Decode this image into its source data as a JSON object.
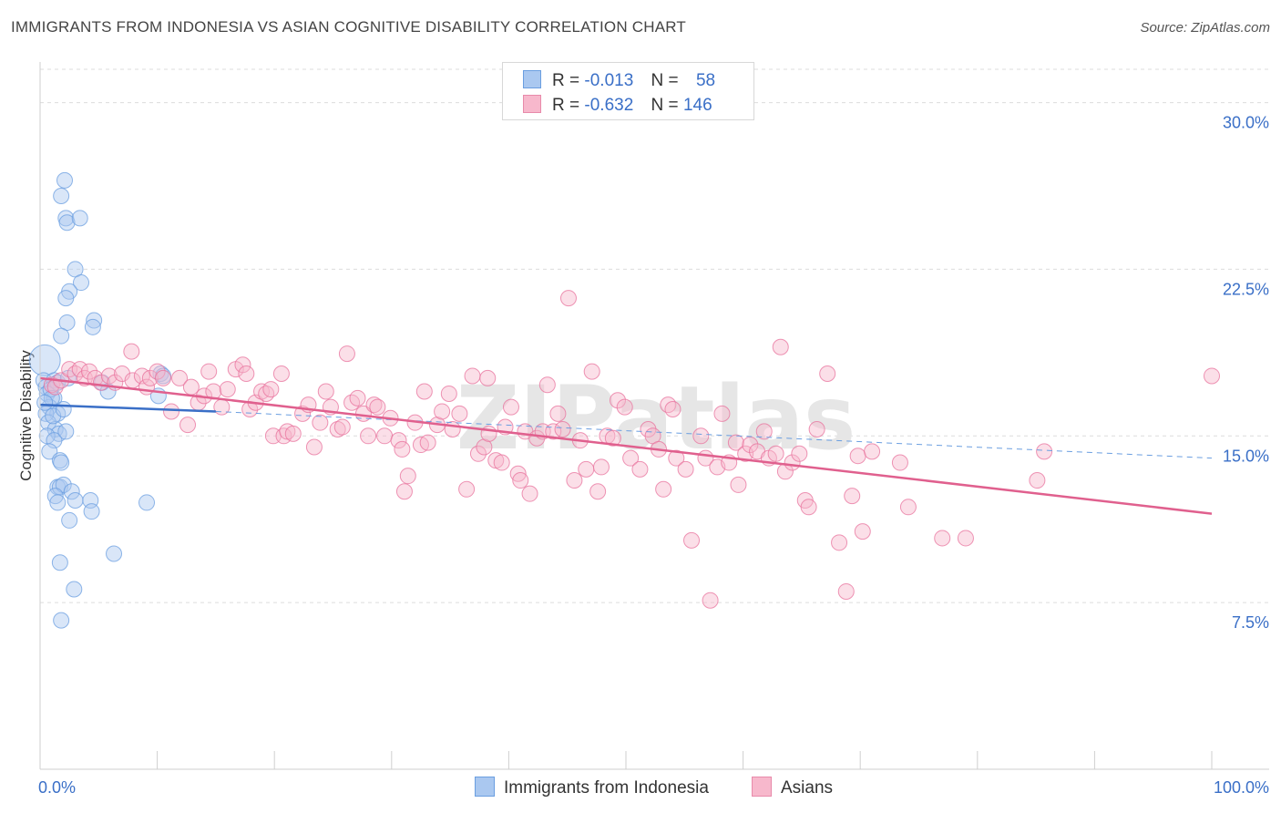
{
  "title": "IMMIGRANTS FROM INDONESIA VS ASIAN COGNITIVE DISABILITY CORRELATION CHART",
  "source": "Source: ZipAtlas.com",
  "watermark": "ZIPatlas",
  "legend": {
    "r_label": "R =",
    "n_label": "N =",
    "series": [
      {
        "r": "-0.013",
        "n": "58",
        "fill": "#aac8f0",
        "stroke": "#6a9ee0"
      },
      {
        "r": "-0.632",
        "n": "146",
        "fill": "#f7b8cc",
        "stroke": "#e88aaa"
      }
    ]
  },
  "chart_data": {
    "type": "scatter",
    "title": "IMMIGRANTS FROM INDONESIA VS ASIAN COGNITIVE DISABILITY CORRELATION CHART",
    "xlabel": "",
    "ylabel": "Cognitive Disability",
    "xlim": [
      0,
      100
    ],
    "ylim": [
      0,
      31.5
    ],
    "x_tick_labels": [
      "0.0%",
      "100.0%"
    ],
    "y_ticks": [
      7.5,
      15.0,
      22.5,
      30.0
    ],
    "y_tick_labels": [
      "7.5%",
      "15.0%",
      "22.5%",
      "30.0%"
    ],
    "grid": true,
    "series": [
      {
        "name": "Immigrants from Indonesia",
        "color": "#6a9ee0",
        "fill": "#aac8f0",
        "trend": {
          "x0": 0,
          "y0": 16.4,
          "x1": 15,
          "y1": 16.1,
          "dash_x1": 100,
          "dash_y1": 14.0
        },
        "points": [
          [
            0.4,
            18.4
          ],
          [
            2.1,
            26.5
          ],
          [
            1.8,
            25.8
          ],
          [
            2.2,
            24.8
          ],
          [
            2.3,
            24.6
          ],
          [
            3.4,
            24.8
          ],
          [
            3.0,
            22.5
          ],
          [
            3.5,
            21.9
          ],
          [
            2.5,
            21.5
          ],
          [
            2.2,
            21.2
          ],
          [
            4.6,
            20.2
          ],
          [
            4.5,
            19.9
          ],
          [
            2.3,
            20.1
          ],
          [
            1.8,
            19.5
          ],
          [
            0.3,
            17.5
          ],
          [
            0.5,
            17.2
          ],
          [
            1.2,
            17.5
          ],
          [
            1.5,
            17.4
          ],
          [
            0.6,
            16.9
          ],
          [
            1.2,
            16.7
          ],
          [
            0.8,
            16.3
          ],
          [
            1.5,
            16.0
          ],
          [
            0.5,
            16.0
          ],
          [
            2.4,
            17.6
          ],
          [
            5.3,
            17.4
          ],
          [
            5.8,
            17.0
          ],
          [
            10.3,
            17.8
          ],
          [
            10.5,
            17.7
          ],
          [
            10.1,
            16.8
          ],
          [
            0.7,
            15.6
          ],
          [
            1.3,
            15.3
          ],
          [
            1.6,
            15.1
          ],
          [
            0.6,
            15.0
          ],
          [
            1.2,
            14.8
          ],
          [
            0.8,
            14.3
          ],
          [
            1.7,
            13.9
          ],
          [
            1.8,
            13.8
          ],
          [
            2.2,
            15.2
          ],
          [
            1.5,
            12.7
          ],
          [
            1.7,
            12.7
          ],
          [
            2.0,
            12.8
          ],
          [
            2.7,
            12.5
          ],
          [
            1.3,
            12.3
          ],
          [
            1.5,
            12.0
          ],
          [
            3.0,
            12.1
          ],
          [
            4.3,
            12.1
          ],
          [
            4.4,
            11.6
          ],
          [
            9.1,
            12.0
          ],
          [
            2.5,
            11.2
          ],
          [
            6.3,
            9.7
          ],
          [
            1.7,
            9.3
          ],
          [
            2.9,
            8.1
          ],
          [
            1.8,
            6.7
          ],
          [
            0.9,
            17.1
          ],
          [
            1.0,
            16.7
          ],
          [
            1.1,
            15.9
          ],
          [
            0.4,
            16.5
          ],
          [
            2.0,
            16.2
          ]
        ]
      },
      {
        "name": "Asians",
        "color": "#e8719c",
        "fill": "#f7b8cc",
        "trend": {
          "x0": 0,
          "y0": 17.6,
          "x1": 100,
          "y1": 11.5
        },
        "points": [
          [
            1.0,
            17.3
          ],
          [
            1.3,
            17.2
          ],
          [
            1.8,
            17.5
          ],
          [
            2.5,
            18.0
          ],
          [
            3.0,
            17.8
          ],
          [
            3.4,
            18.0
          ],
          [
            3.8,
            17.6
          ],
          [
            4.2,
            17.9
          ],
          [
            4.7,
            17.6
          ],
          [
            5.2,
            17.4
          ],
          [
            5.9,
            17.7
          ],
          [
            6.4,
            17.4
          ],
          [
            7.0,
            17.8
          ],
          [
            7.9,
            17.5
          ],
          [
            7.8,
            18.8
          ],
          [
            8.7,
            17.7
          ],
          [
            9.1,
            17.2
          ],
          [
            9.4,
            17.6
          ],
          [
            10.0,
            17.9
          ],
          [
            10.5,
            17.6
          ],
          [
            11.2,
            16.1
          ],
          [
            11.9,
            17.6
          ],
          [
            12.6,
            15.5
          ],
          [
            12.9,
            17.2
          ],
          [
            13.5,
            16.5
          ],
          [
            14.0,
            16.8
          ],
          [
            14.4,
            17.9
          ],
          [
            14.8,
            17.0
          ],
          [
            15.5,
            16.3
          ],
          [
            16.0,
            17.1
          ],
          [
            16.7,
            18.0
          ],
          [
            17.3,
            18.2
          ],
          [
            17.6,
            17.8
          ],
          [
            17.9,
            16.2
          ],
          [
            18.4,
            16.5
          ],
          [
            18.9,
            17.0
          ],
          [
            19.3,
            16.9
          ],
          [
            19.7,
            17.1
          ],
          [
            19.9,
            15.0
          ],
          [
            20.6,
            17.8
          ],
          [
            20.8,
            15.0
          ],
          [
            21.1,
            15.2
          ],
          [
            21.6,
            15.1
          ],
          [
            22.4,
            16.0
          ],
          [
            22.9,
            16.4
          ],
          [
            23.4,
            14.5
          ],
          [
            23.9,
            15.6
          ],
          [
            24.4,
            17.0
          ],
          [
            24.8,
            16.3
          ],
          [
            25.4,
            15.3
          ],
          [
            25.8,
            15.4
          ],
          [
            26.2,
            18.7
          ],
          [
            26.6,
            16.5
          ],
          [
            27.1,
            16.7
          ],
          [
            27.6,
            16.0
          ],
          [
            28.0,
            15.0
          ],
          [
            28.5,
            16.4
          ],
          [
            28.8,
            16.3
          ],
          [
            29.4,
            15.0
          ],
          [
            29.9,
            15.8
          ],
          [
            30.6,
            14.8
          ],
          [
            30.9,
            14.4
          ],
          [
            31.4,
            13.2
          ],
          [
            31.1,
            12.5
          ],
          [
            32.0,
            15.6
          ],
          [
            32.5,
            14.6
          ],
          [
            32.8,
            17.0
          ],
          [
            33.1,
            14.7
          ],
          [
            33.9,
            15.5
          ],
          [
            34.3,
            16.1
          ],
          [
            34.9,
            16.9
          ],
          [
            35.2,
            15.3
          ],
          [
            35.8,
            16.0
          ],
          [
            36.4,
            12.6
          ],
          [
            36.9,
            17.7
          ],
          [
            37.4,
            14.2
          ],
          [
            37.9,
            14.5
          ],
          [
            38.3,
            15.1
          ],
          [
            38.9,
            13.9
          ],
          [
            39.4,
            13.8
          ],
          [
            39.7,
            15.4
          ],
          [
            40.2,
            16.3
          ],
          [
            40.8,
            13.3
          ],
          [
            41.0,
            13.0
          ],
          [
            41.4,
            15.2
          ],
          [
            41.8,
            12.4
          ],
          [
            42.4,
            14.9
          ],
          [
            42.9,
            15.2
          ],
          [
            43.3,
            17.3
          ],
          [
            43.8,
            15.2
          ],
          [
            44.2,
            16.0
          ],
          [
            44.6,
            15.3
          ],
          [
            45.1,
            21.2
          ],
          [
            45.6,
            13.0
          ],
          [
            46.1,
            14.8
          ],
          [
            46.6,
            13.5
          ],
          [
            47.1,
            17.9
          ],
          [
            47.6,
            12.5
          ],
          [
            47.9,
            13.6
          ],
          [
            48.4,
            15.0
          ],
          [
            48.9,
            14.9
          ],
          [
            49.3,
            16.6
          ],
          [
            49.9,
            16.3
          ],
          [
            50.4,
            14.0
          ],
          [
            51.2,
            13.5
          ],
          [
            51.9,
            15.3
          ],
          [
            52.3,
            15.0
          ],
          [
            52.8,
            14.4
          ],
          [
            53.2,
            12.6
          ],
          [
            53.6,
            16.4
          ],
          [
            54.0,
            16.2
          ],
          [
            54.3,
            14.0
          ],
          [
            55.1,
            13.5
          ],
          [
            55.6,
            10.3
          ],
          [
            56.4,
            15.0
          ],
          [
            56.8,
            14.0
          ],
          [
            57.2,
            7.6
          ],
          [
            57.8,
            13.6
          ],
          [
            58.2,
            16.0
          ],
          [
            58.8,
            13.8
          ],
          [
            59.4,
            14.7
          ],
          [
            59.6,
            12.8
          ],
          [
            60.2,
            14.2
          ],
          [
            60.6,
            14.6
          ],
          [
            61.2,
            14.3
          ],
          [
            61.8,
            15.2
          ],
          [
            62.2,
            14.0
          ],
          [
            62.8,
            14.2
          ],
          [
            63.2,
            19.0
          ],
          [
            63.6,
            13.4
          ],
          [
            64.2,
            13.8
          ],
          [
            64.8,
            14.2
          ],
          [
            65.3,
            12.1
          ],
          [
            65.6,
            11.8
          ],
          [
            66.3,
            15.3
          ],
          [
            67.2,
            17.8
          ],
          [
            68.2,
            10.2
          ],
          [
            68.8,
            8.0
          ],
          [
            69.3,
            12.3
          ],
          [
            69.8,
            14.1
          ],
          [
            70.2,
            10.7
          ],
          [
            71.0,
            14.3
          ],
          [
            73.4,
            13.8
          ],
          [
            74.1,
            11.8
          ],
          [
            77.0,
            10.4
          ],
          [
            79.0,
            10.4
          ],
          [
            85.1,
            13.0
          ],
          [
            85.7,
            14.3
          ],
          [
            100.0,
            17.7
          ],
          [
            38.2,
            17.6
          ]
        ]
      }
    ]
  },
  "bottom_legend": [
    "Immigrants from Indonesia",
    "Asians"
  ]
}
